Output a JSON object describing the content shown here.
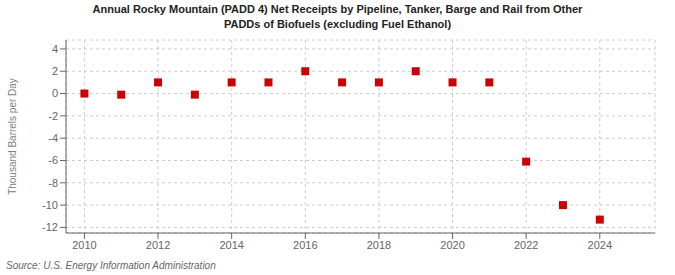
{
  "chart_data": {
    "type": "scatter",
    "title": "Annual Rocky Mountain (PADD 4) Net Receipts by Pipeline, Tanker, Barge and Rail from Other\nPADDs of Biofuels (excluding Fuel Ethanol)",
    "y_label": "Thousand Barrels per Day",
    "annotations": [
      "Source: U.S. Energy Information Administration"
    ],
    "x": [
      2010,
      2011,
      2012,
      2013,
      2014,
      2015,
      2016,
      2017,
      2018,
      2019,
      2020,
      2021,
      2022,
      2023,
      2024
    ],
    "values": [
      0.0,
      -0.1,
      1.0,
      -0.1,
      1.0,
      1.0,
      2.0,
      1.0,
      1.0,
      2.0,
      1.0,
      1.0,
      -6.1,
      -10.0,
      -11.3
    ],
    "color": "#cc0000",
    "marker": "square",
    "xlim": [
      2009.5,
      2025.5
    ],
    "ylim": [
      -12.5,
      4.8
    ],
    "xticks": [
      2010,
      2012,
      2014,
      2016,
      2018,
      2020,
      2022,
      2024
    ],
    "yticks": [
      4,
      2,
      0,
      -2,
      -4,
      -6,
      -8,
      -10,
      -12
    ],
    "grid": true
  }
}
